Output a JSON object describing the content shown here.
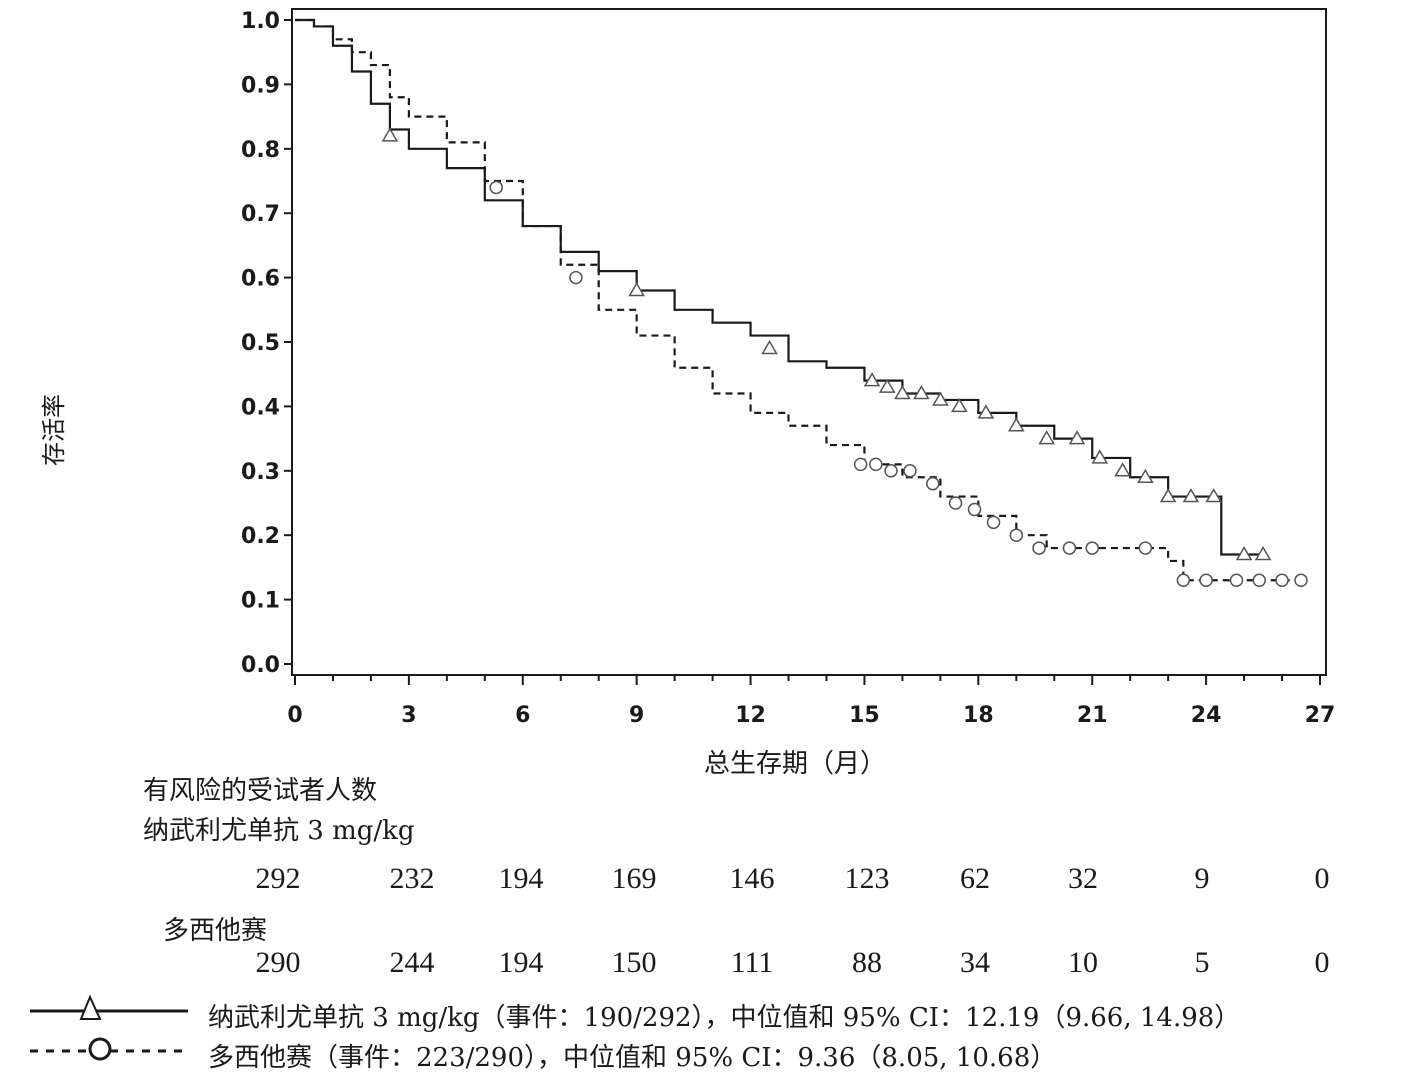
{
  "chart_data": {
    "type": "line",
    "title": "",
    "xlabel": "总生存期（月）",
    "ylabel": "存活率",
    "xlim": [
      0,
      27
    ],
    "ylim": [
      0,
      1
    ],
    "xticks": [
      0,
      3,
      6,
      9,
      12,
      15,
      18,
      21,
      24,
      27
    ],
    "yticks": [
      "0.0",
      "0.1",
      "0.2",
      "0.3",
      "0.4",
      "0.5",
      "0.6",
      "0.7",
      "0.8",
      "0.9",
      "1.0"
    ],
    "grid": false,
    "series": [
      {
        "name": "纳武利尤单抗 3 mg/kg",
        "style": "solid",
        "marker": "triangle",
        "color": "#1a1a1a",
        "points": [
          [
            0,
            1.0
          ],
          [
            0.5,
            0.99
          ],
          [
            1.0,
            0.96
          ],
          [
            1.5,
            0.92
          ],
          [
            2.0,
            0.87
          ],
          [
            2.5,
            0.83
          ],
          [
            3.0,
            0.8
          ],
          [
            4.0,
            0.77
          ],
          [
            5.0,
            0.72
          ],
          [
            6.0,
            0.68
          ],
          [
            7.0,
            0.64
          ],
          [
            8.0,
            0.61
          ],
          [
            9.0,
            0.58
          ],
          [
            10.0,
            0.55
          ],
          [
            11.0,
            0.53
          ],
          [
            12.0,
            0.51
          ],
          [
            13.0,
            0.47
          ],
          [
            14.0,
            0.46
          ],
          [
            15.0,
            0.44
          ],
          [
            16.0,
            0.42
          ],
          [
            17.0,
            0.41
          ],
          [
            18.0,
            0.39
          ],
          [
            19.0,
            0.37
          ],
          [
            20.0,
            0.35
          ],
          [
            21.0,
            0.32
          ],
          [
            22.0,
            0.29
          ],
          [
            23.0,
            0.26
          ],
          [
            24.4,
            0.26
          ],
          [
            24.4,
            0.17
          ],
          [
            25.5,
            0.17
          ]
        ],
        "censored": [
          [
            2.5,
            0.82
          ],
          [
            9.0,
            0.58
          ],
          [
            12.5,
            0.49
          ],
          [
            15.2,
            0.44
          ],
          [
            15.6,
            0.43
          ],
          [
            16.0,
            0.42
          ],
          [
            16.5,
            0.42
          ],
          [
            17.0,
            0.41
          ],
          [
            17.5,
            0.4
          ],
          [
            18.2,
            0.39
          ],
          [
            19.0,
            0.37
          ],
          [
            19.8,
            0.35
          ],
          [
            20.6,
            0.35
          ],
          [
            21.2,
            0.32
          ],
          [
            21.8,
            0.3
          ],
          [
            22.4,
            0.29
          ],
          [
            23.0,
            0.26
          ],
          [
            23.6,
            0.26
          ],
          [
            24.2,
            0.26
          ],
          [
            25.0,
            0.17
          ],
          [
            25.5,
            0.17
          ]
        ]
      },
      {
        "name": "多西他赛",
        "style": "dashed",
        "marker": "circle",
        "color": "#1a1a1a",
        "points": [
          [
            0,
            1.0
          ],
          [
            0.5,
            0.99
          ],
          [
            1.0,
            0.97
          ],
          [
            1.5,
            0.95
          ],
          [
            2.0,
            0.93
          ],
          [
            2.5,
            0.88
          ],
          [
            3.0,
            0.85
          ],
          [
            4.0,
            0.81
          ],
          [
            5.0,
            0.75
          ],
          [
            6.0,
            0.68
          ],
          [
            7.0,
            0.62
          ],
          [
            8.0,
            0.55
          ],
          [
            9.0,
            0.51
          ],
          [
            10.0,
            0.46
          ],
          [
            11.0,
            0.42
          ],
          [
            12.0,
            0.39
          ],
          [
            13.0,
            0.37
          ],
          [
            14.0,
            0.34
          ],
          [
            15.0,
            0.31
          ],
          [
            16.0,
            0.29
          ],
          [
            17.0,
            0.26
          ],
          [
            18.0,
            0.23
          ],
          [
            19.0,
            0.2
          ],
          [
            19.8,
            0.18
          ],
          [
            21.0,
            0.18
          ],
          [
            22.5,
            0.18
          ],
          [
            23.0,
            0.16
          ],
          [
            23.4,
            0.13
          ],
          [
            26.5,
            0.13
          ]
        ],
        "censored": [
          [
            5.3,
            0.74
          ],
          [
            7.4,
            0.6
          ],
          [
            14.9,
            0.31
          ],
          [
            15.3,
            0.31
          ],
          [
            15.7,
            0.3
          ],
          [
            16.2,
            0.3
          ],
          [
            16.8,
            0.28
          ],
          [
            17.4,
            0.25
          ],
          [
            17.9,
            0.24
          ],
          [
            18.4,
            0.22
          ],
          [
            19.0,
            0.2
          ],
          [
            19.6,
            0.18
          ],
          [
            20.4,
            0.18
          ],
          [
            21.0,
            0.18
          ],
          [
            22.4,
            0.18
          ],
          [
            23.4,
            0.13
          ],
          [
            24.0,
            0.13
          ],
          [
            24.8,
            0.13
          ],
          [
            25.4,
            0.13
          ],
          [
            26.0,
            0.13
          ],
          [
            26.5,
            0.13
          ]
        ]
      }
    ]
  },
  "risk_table": {
    "title": "有风险的受试者人数",
    "times": [
      0,
      3,
      6,
      9,
      12,
      15,
      18,
      21,
      24,
      27
    ],
    "groups": [
      {
        "label": "纳武利尤单抗 3 mg/kg",
        "counts": [
          "292",
          "232",
          "194",
          "169",
          "146",
          "123",
          "62",
          "32",
          "9",
          "0"
        ]
      },
      {
        "label": "多西他赛",
        "counts": [
          "290",
          "244",
          "194",
          "150",
          "111",
          "88",
          "34",
          "10",
          "5",
          "0"
        ]
      }
    ]
  },
  "legend": {
    "items": [
      {
        "text": "纳武利尤单抗 3 mg/kg（事件：190/292），中位值和 95% CI：12.19（9.66, 14.98）"
      },
      {
        "text": "多西他赛（事件：223/290），中位值和 95% CI：9.36（8.05, 10.68）"
      }
    ]
  }
}
